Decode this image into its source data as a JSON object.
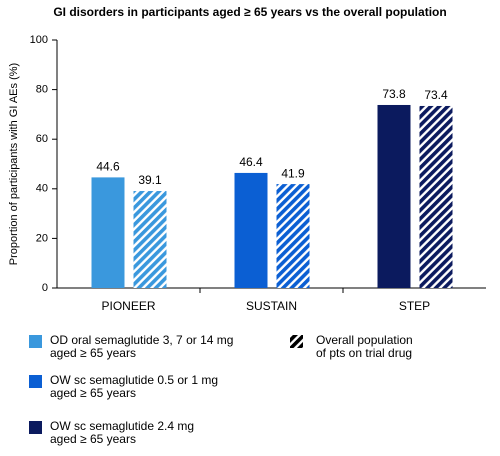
{
  "chart_data": {
    "type": "bar",
    "title": "GI disorders in participants aged ≥ 65 years vs the overall population",
    "ylabel": "Proportion of participants with GI AEs (%)",
    "categories": [
      "PIONEER",
      "SUSTAIN",
      "STEP"
    ],
    "values": [
      [
        44.6,
        39.1
      ],
      [
        46.4,
        41.9
      ],
      [
        73.8,
        73.4
      ]
    ],
    "colors": [
      "#3a98dd",
      "#0b5fd3",
      "#0b1a5e"
    ],
    "hatched": [
      false,
      true
    ],
    "ylim": [
      0,
      100
    ],
    "yticks": [
      0,
      20,
      40,
      60,
      80,
      100
    ],
    "legend": [
      {
        "lines": [
          "OD oral semaglutide 3, 7 or 14 mg",
          "aged ≥ 65 years"
        ],
        "color": "#3a98dd"
      },
      {
        "lines": [
          "OW sc semaglutide 0.5 or 1 mg",
          "aged ≥ 65 years"
        ],
        "color": "#0b5fd3"
      },
      {
        "lines": [
          "OW sc semaglutide 2.4 mg",
          "aged ≥ 65 years"
        ],
        "color": "#0b1a5e"
      }
    ],
    "overall_legend": {
      "lines": [
        "Overall population",
        "of pts on trial drug"
      ],
      "color": "#000000"
    }
  }
}
